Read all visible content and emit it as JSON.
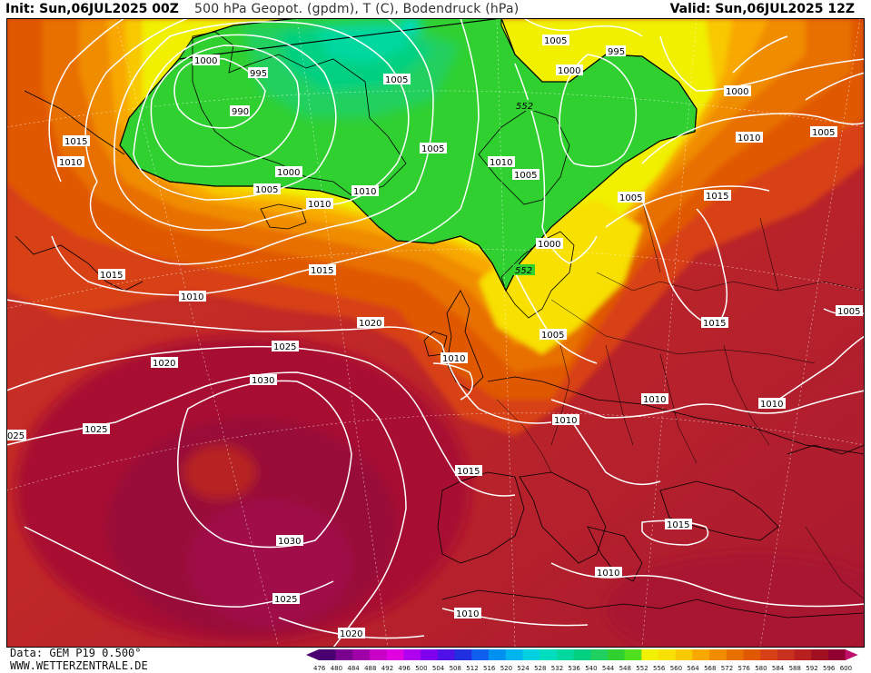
{
  "header": {
    "init": "Init: Sun,06JUL2025 00Z",
    "title": "500 hPa Geopot. (gpdm), T (C), Bodendruck (hPa)",
    "valid": "Valid: Sun,06JUL2025 12Z"
  },
  "footer": {
    "data": "Data: GEM P19 0.500°",
    "site": "WWW.WETTERZENTRALE.DE"
  },
  "legend": {
    "values": [
      "476",
      "480",
      "484",
      "488",
      "492",
      "496",
      "500",
      "504",
      "508",
      "512",
      "516",
      "520",
      "524",
      "528",
      "532",
      "536",
      "540",
      "544",
      "548",
      "552",
      "556",
      "560",
      "564",
      "568",
      "572",
      "576",
      "580",
      "584",
      "588",
      "592",
      "596",
      "600"
    ],
    "colors": [
      "#4a0070",
      "#7a0090",
      "#a000a8",
      "#c800c8",
      "#e000e0",
      "#b000f0",
      "#8000f0",
      "#5010e8",
      "#2030e0",
      "#1060f0",
      "#0090f0",
      "#00b4f0",
      "#00d0e0",
      "#00dcc0",
      "#00d8a0",
      "#00d080",
      "#20d060",
      "#30d030",
      "#50e020",
      "#f0f000",
      "#f8e000",
      "#f8c800",
      "#f8a800",
      "#f08c00",
      "#e87000",
      "#e05800",
      "#d84018",
      "#c83020",
      "#b82020",
      "#a01020",
      "#900030",
      "#c0106c"
    ]
  },
  "isobar_labels": {
    "l1000a": "1000",
    "l995a": "995",
    "l990": "990",
    "l1005a": "1005",
    "l1005b": "1005",
    "l995b": "995",
    "l1000b": "1000",
    "l1000c": "1000",
    "l1015a": "1015",
    "l1010a": "1010",
    "l1005c": "1005",
    "l1000d": "1000",
    "l1005d": "1005",
    "l1010b": "1010",
    "l1010c": "1010",
    "l1005e": "1005",
    "l1005f": "1005",
    "l1010d": "1010",
    "l1005g": "1005",
    "l1015b": "1015",
    "l1000e": "1000",
    "l1015c": "1015",
    "l1010e": "1010",
    "l1015d": "1015",
    "l1020a": "1020",
    "l1025a": "1025",
    "l1020b": "1020",
    "l1030a": "1030",
    "l1025b": "1025",
    "l025": "025",
    "l1015e": "1015",
    "l1030b": "1030",
    "l1015f": "1015",
    "l1025c": "1025",
    "l1010f": "1010",
    "l1010g": "1010",
    "l1010h": "1010",
    "l1010i": "1010",
    "l1020c": "1020",
    "l1005h": "1005",
    "l1010j": "1010",
    "l1015g": "1015"
  },
  "geopot_labels": {
    "g552a": "552",
    "g552b": "552"
  }
}
